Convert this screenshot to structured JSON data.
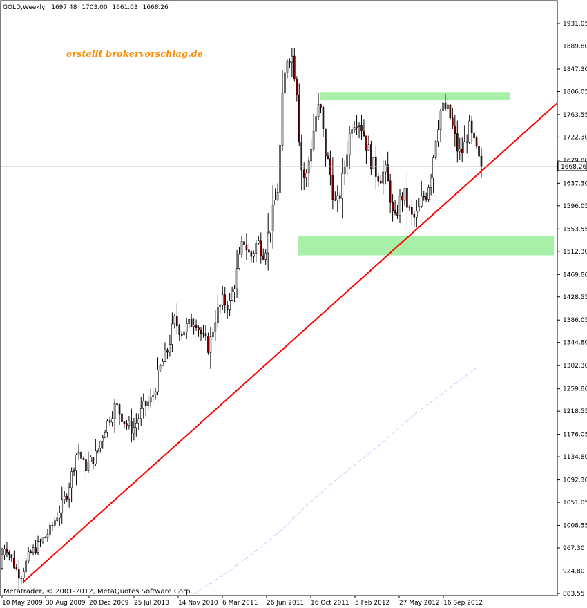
{
  "header": {
    "symbol": "GOLD,Weekly",
    "open": "1697.48",
    "high": "1703.00",
    "low": "1661.03",
    "close": "1668.26"
  },
  "watermark": "erstellt brokervorschlag.de",
  "copyright": "Metatrader, © 2001-2012, MetaQuotes Software Corp.",
  "current_price_label": "1668.26",
  "colors": {
    "background": "#ffffff",
    "axis": "#000000",
    "bull_candle": "#ffffff",
    "bear_candle": "#800000",
    "trendline": "#ff0000",
    "zone": "#a8f0a8",
    "moving_average": "#c8c8ff",
    "watermark": "#ff8c00"
  },
  "chart_data": {
    "type": "candlestick",
    "timeframe": "Weekly",
    "ylim": [
      883.55,
      1950.0
    ],
    "y_ticks": [
      "1931.05",
      "1889.80",
      "1847.30",
      "1806.05",
      "1763.55",
      "1722.30",
      "1679.80",
      "1637.30",
      "1596.05",
      "1553.55",
      "1512.30",
      "1469.80",
      "1428.55",
      "1386.05",
      "1344.80",
      "1302.30",
      "1259.80",
      "1218.55",
      "1176.05",
      "1134.80",
      "1092.30",
      "1051.05",
      "1008.55",
      "967.30",
      "924.80",
      "883.55"
    ],
    "x_ticks": [
      "10 May 2009",
      "30 Aug 2009",
      "20 Dec 2009",
      "25 Jul 2010",
      "14 Nov 2010",
      "6 Mar 2011",
      "26 Jun 2011",
      "16 Oct 2011",
      "5 Feb 2012",
      "27 May 2012",
      "16 Sep 2012"
    ],
    "price_path": [
      [
        0,
        930
      ],
      [
        10,
        975
      ],
      [
        18,
        950
      ],
      [
        25,
        930
      ],
      [
        32,
        915
      ],
      [
        45,
        955
      ],
      [
        60,
        975
      ],
      [
        75,
        1000
      ],
      [
        90,
        1040
      ],
      [
        100,
        1070
      ],
      [
        115,
        1150
      ],
      [
        125,
        1115
      ],
      [
        140,
        1135
      ],
      [
        155,
        1190
      ],
      [
        170,
        1230
      ],
      [
        185,
        1195
      ],
      [
        195,
        1185
      ],
      [
        210,
        1225
      ],
      [
        222,
        1240
      ],
      [
        235,
        1300
      ],
      [
        245,
        1330
      ],
      [
        255,
        1385
      ],
      [
        265,
        1365
      ],
      [
        275,
        1375
      ],
      [
        285,
        1390
      ],
      [
        295,
        1355
      ],
      [
        305,
        1335
      ],
      [
        315,
        1395
      ],
      [
        325,
        1420
      ],
      [
        335,
        1415
      ],
      [
        345,
        1470
      ],
      [
        355,
        1535
      ],
      [
        365,
        1500
      ],
      [
        375,
        1530
      ],
      [
        385,
        1510
      ],
      [
        395,
        1565
      ],
      [
        405,
        1630
      ],
      [
        412,
        1800
      ],
      [
        418,
        1870
      ],
      [
        424,
        1880
      ],
      [
        432,
        1820
      ],
      [
        438,
        1670
      ],
      [
        445,
        1640
      ],
      [
        452,
        1700
      ],
      [
        460,
        1760
      ],
      [
        466,
        1780
      ],
      [
        473,
        1700
      ],
      [
        480,
        1660
      ],
      [
        487,
        1600
      ],
      [
        492,
        1600
      ],
      [
        498,
        1640
      ],
      [
        505,
        1700
      ],
      [
        512,
        1750
      ],
      [
        520,
        1760
      ],
      [
        527,
        1740
      ],
      [
        533,
        1710
      ],
      [
        540,
        1680
      ],
      [
        546,
        1660
      ],
      [
        553,
        1650
      ],
      [
        560,
        1660
      ],
      [
        567,
        1620
      ],
      [
        573,
        1560
      ],
      [
        580,
        1600
      ],
      [
        587,
        1620
      ],
      [
        594,
        1590
      ],
      [
        600,
        1570
      ],
      [
        607,
        1580
      ],
      [
        614,
        1610
      ],
      [
        620,
        1620
      ],
      [
        627,
        1660
      ],
      [
        634,
        1730
      ],
      [
        640,
        1770
      ],
      [
        647,
        1775
      ],
      [
        654,
        1760
      ],
      [
        661,
        1720
      ],
      [
        667,
        1690
      ],
      [
        674,
        1700
      ],
      [
        681,
        1740
      ],
      [
        688,
        1710
      ],
      [
        694,
        1690
      ],
      [
        697,
        1668.26
      ]
    ],
    "annotations": {
      "trendline": {
        "from": [
          "10 May 2009",
          905
        ],
        "to": [
          "end",
          1785
        ]
      },
      "resistance_zone": {
        "low": 1790,
        "high": 1805
      },
      "support_zone": {
        "low": 1505,
        "high": 1540
      },
      "moving_average_visible": true
    },
    "last_price": 1668.26,
    "grid": false,
    "legend": "none"
  }
}
